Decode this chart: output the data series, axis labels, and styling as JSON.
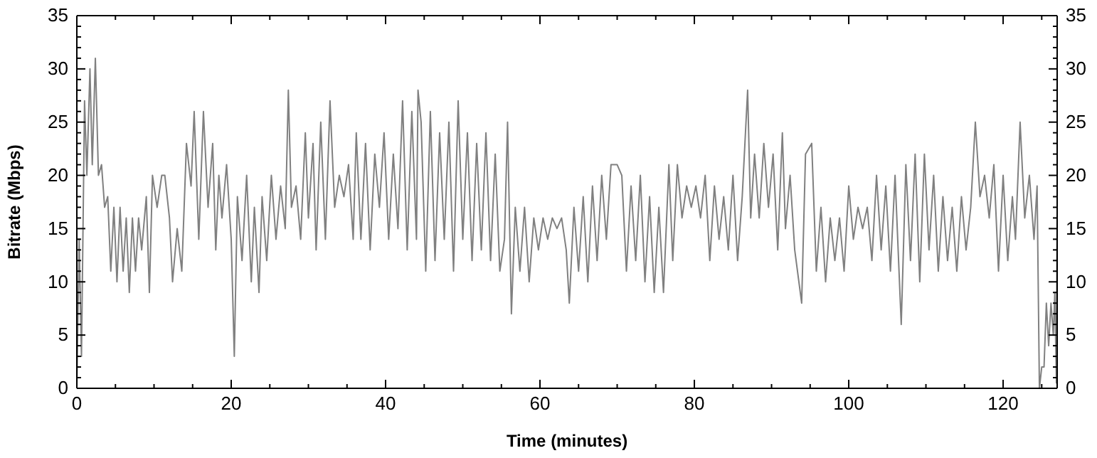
{
  "chart_data": {
    "type": "line",
    "xlabel": "Time (minutes)",
    "ylabel": "Bitrate (Mbps)",
    "xlim": [
      0,
      127
    ],
    "ylim": [
      0,
      35
    ],
    "y2lim": [
      0,
      35
    ],
    "xticks": [
      0,
      {
        "value": 5,
        "label": null
      },
      {
        "value": 10,
        "label": null
      },
      {
        "value": 15,
        "label": null
      },
      20,
      {
        "value": 25,
        "label": null
      },
      {
        "value": 30,
        "label": null
      },
      {
        "value": 35,
        "label": null
      },
      40,
      {
        "value": 45,
        "label": null
      },
      {
        "value": 50,
        "label": null
      },
      {
        "value": 55,
        "label": null
      },
      60,
      {
        "value": 65,
        "label": null
      },
      {
        "value": 70,
        "label": null
      },
      {
        "value": 75,
        "label": null
      },
      80,
      {
        "value": 85,
        "label": null
      },
      {
        "value": 90,
        "label": null
      },
      {
        "value": 95,
        "label": null
      },
      100,
      {
        "value": 105,
        "label": null
      },
      {
        "value": 110,
        "label": null
      },
      {
        "value": 115,
        "label": null
      },
      120,
      {
        "value": 125,
        "label": null
      }
    ],
    "yticks": [
      0,
      {
        "value": 1,
        "label": null
      },
      {
        "value": 2,
        "label": null
      },
      {
        "value": 3,
        "label": null
      },
      {
        "value": 4,
        "label": null
      },
      5,
      {
        "value": 6,
        "label": null
      },
      {
        "value": 7,
        "label": null
      },
      {
        "value": 8,
        "label": null
      },
      {
        "value": 9,
        "label": null
      },
      10,
      {
        "value": 11,
        "label": null
      },
      {
        "value": 12,
        "label": null
      },
      {
        "value": 13,
        "label": null
      },
      {
        "value": 14,
        "label": null
      },
      15,
      {
        "value": 16,
        "label": null
      },
      {
        "value": 17,
        "label": null
      },
      {
        "value": 18,
        "label": null
      },
      {
        "value": 19,
        "label": null
      },
      20,
      {
        "value": 21,
        "label": null
      },
      {
        "value": 22,
        "label": null
      },
      {
        "value": 23,
        "label": null
      },
      {
        "value": 24,
        "label": null
      },
      25,
      {
        "value": 26,
        "label": null
      },
      {
        "value": 27,
        "label": null
      },
      {
        "value": 28,
        "label": null
      },
      {
        "value": 29,
        "label": null
      },
      30,
      {
        "value": 31,
        "label": null
      },
      {
        "value": 32,
        "label": null
      },
      {
        "value": 33,
        "label": null
      },
      {
        "value": 34,
        "label": null
      },
      35
    ],
    "y2ticks": [
      0,
      {
        "value": 1,
        "label": null
      },
      {
        "value": 2,
        "label": null
      },
      {
        "value": 3,
        "label": null
      },
      {
        "value": 4,
        "label": null
      },
      5,
      {
        "value": 6,
        "label": null
      },
      {
        "value": 7,
        "label": null
      },
      {
        "value": 8,
        "label": null
      },
      {
        "value": 9,
        "label": null
      },
      10,
      {
        "value": 11,
        "label": null
      },
      {
        "value": 12,
        "label": null
      },
      {
        "value": 13,
        "label": null
      },
      {
        "value": 14,
        "label": null
      },
      15,
      {
        "value": 16,
        "label": null
      },
      {
        "value": 17,
        "label": null
      },
      {
        "value": 18,
        "label": null
      },
      {
        "value": 19,
        "label": null
      },
      20,
      {
        "value": 21,
        "label": null
      },
      {
        "value": 22,
        "label": null
      },
      {
        "value": 23,
        "label": null
      },
      {
        "value": 24,
        "label": null
      },
      25,
      {
        "value": 26,
        "label": null
      },
      {
        "value": 27,
        "label": null
      },
      {
        "value": 28,
        "label": null
      },
      {
        "value": 29,
        "label": null
      },
      30,
      {
        "value": 31,
        "label": null
      },
      {
        "value": 32,
        "label": null
      },
      {
        "value": 33,
        "label": null
      },
      {
        "value": 34,
        "label": null
      },
      35
    ],
    "grid": false,
    "marker": "none",
    "line_style": "solid",
    "series": [
      {
        "color": "#808080",
        "x": [
          0,
          0.3,
          0.6,
          1,
          1.3,
          1.7,
          2,
          2.4,
          2.8,
          3.2,
          3.6,
          4,
          4.4,
          4.8,
          5.2,
          5.6,
          6,
          6.4,
          6.8,
          7.2,
          7.6,
          8,
          8.4,
          9,
          9.4,
          9.8,
          10.4,
          11,
          11.4,
          12,
          12.4,
          13,
          13.6,
          14.2,
          14.8,
          15.2,
          15.8,
          16.4,
          17,
          17.6,
          18,
          18.4,
          18.8,
          19.4,
          20,
          20.4,
          20.8,
          21.4,
          22,
          22.6,
          23,
          23.6,
          24,
          24.6,
          25.2,
          25.8,
          26.4,
          27,
          27.4,
          27.8,
          28.4,
          29,
          29.6,
          30,
          30.6,
          31,
          31.6,
          32.2,
          32.8,
          33.4,
          34,
          34.6,
          35.2,
          35.8,
          36.2,
          36.8,
          37.4,
          38,
          38.6,
          39.2,
          39.8,
          40.4,
          41,
          41.6,
          42.2,
          42.8,
          43.4,
          44,
          44.2,
          44.6,
          45.2,
          45.8,
          46.4,
          47,
          47.6,
          48.2,
          48.8,
          49.4,
          50,
          50.6,
          51.2,
          51.8,
          52.4,
          53,
          53.6,
          54.2,
          54.8,
          55.4,
          55.8,
          56.3,
          56.8,
          57.4,
          58,
          58.6,
          59.2,
          59.8,
          60.4,
          61,
          61.6,
          62.2,
          62.8,
          63.4,
          63.8,
          64.4,
          65,
          65.6,
          66.2,
          66.8,
          67.4,
          68,
          68.6,
          69.2,
          70,
          70.6,
          71.2,
          71.8,
          72.4,
          73,
          73.6,
          74.2,
          74.8,
          75.4,
          76,
          76.7,
          77.2,
          77.8,
          78.4,
          79,
          79.6,
          80.2,
          80.8,
          81.4,
          82,
          82.6,
          83.2,
          83.8,
          84.4,
          85,
          85.6,
          86.2,
          86.9,
          87.3,
          87.8,
          88.4,
          89,
          89.6,
          90.2,
          90.8,
          91.4,
          91.8,
          92.4,
          93,
          93.9,
          94.4,
          95.2,
          95.8,
          96.4,
          97,
          97.6,
          98.2,
          98.8,
          99.4,
          100,
          100.6,
          101.2,
          101.8,
          102.4,
          103,
          103.6,
          104.2,
          104.8,
          105.4,
          106,
          106.8,
          107.4,
          108,
          108.6,
          109.2,
          109.8,
          110.4,
          111,
          111.6,
          112.2,
          112.8,
          113.4,
          114,
          114.6,
          115.2,
          115.8,
          116.4,
          117,
          117.6,
          118.2,
          118.8,
          119.4,
          120,
          120.6,
          121.2,
          121.6,
          122.2,
          122.8,
          123.4,
          124,
          124.4,
          124.7,
          125,
          125.3,
          125.6,
          125.9,
          126.2,
          126.5,
          126.7,
          126.9,
          127
        ],
        "values": [
          0,
          14,
          3,
          27,
          20,
          30,
          21,
          31,
          20,
          21,
          17,
          18,
          11,
          17,
          10,
          17,
          11,
          16,
          9,
          16,
          11,
          16,
          13,
          18,
          9,
          20,
          17,
          20,
          20,
          16,
          10,
          15,
          11,
          23,
          19,
          26,
          14,
          26,
          17,
          23,
          13,
          20,
          16,
          21,
          14,
          3,
          18,
          12,
          20,
          10,
          17,
          9,
          18,
          12,
          20,
          14,
          19,
          15,
          28,
          17,
          19,
          14,
          24,
          16,
          23,
          13,
          25,
          14,
          27,
          17,
          20,
          18,
          21,
          14,
          24,
          14,
          23,
          13,
          22,
          17,
          24,
          14,
          22,
          15,
          27,
          13,
          26,
          14,
          28,
          25,
          11,
          26,
          12,
          24,
          14,
          25,
          11,
          27,
          14,
          24,
          12,
          23,
          13,
          24,
          12,
          22,
          11,
          14,
          25,
          7,
          17,
          11,
          17,
          10,
          16,
          13,
          16,
          14,
          16,
          15,
          16,
          13,
          8,
          17,
          11,
          18,
          10,
          19,
          12,
          20,
          14,
          21,
          21,
          20,
          11,
          19,
          12,
          20,
          10,
          18,
          9,
          17,
          9,
          21,
          12,
          21,
          16,
          19,
          17,
          19,
          16,
          20,
          12,
          19,
          14,
          18,
          13,
          20,
          12,
          18,
          28,
          16,
          22,
          16,
          23,
          17,
          22,
          13,
          24,
          15,
          20,
          13,
          8,
          22,
          23,
          11,
          17,
          10,
          16,
          12,
          16,
          11,
          19,
          14,
          17,
          15,
          17,
          12,
          20,
          13,
          19,
          11,
          20,
          6,
          21,
          12,
          22,
          10,
          22,
          13,
          20,
          11,
          18,
          12,
          17,
          11,
          18,
          13,
          17,
          25,
          18,
          20,
          16,
          21,
          11,
          20,
          12,
          18,
          14,
          25,
          16,
          20,
          14,
          19,
          0,
          2,
          2,
          8,
          4,
          8,
          5,
          9,
          0.5,
          17
        ]
      }
    ]
  }
}
